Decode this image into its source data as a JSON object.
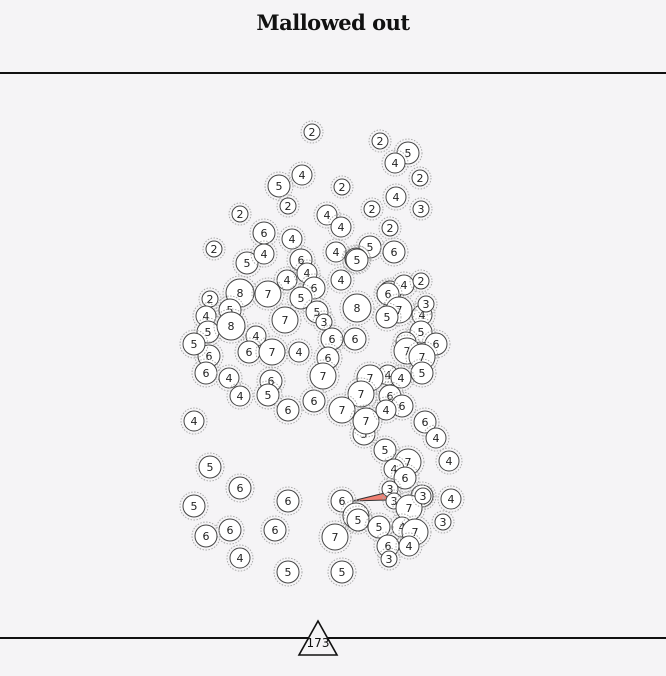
{
  "title": "Mallowed out",
  "remaining_count": "173",
  "colors": {
    "background": "#f5f4f6",
    "mallow_stroke": "#444444",
    "mallow_fill": "#ffffff",
    "glow": "#aaaaaa",
    "spike_fill": "#f07f72"
  },
  "mallows": [
    {
      "v": 2
    },
    {
      "v": 2
    },
    {
      "v": 5
    },
    {
      "v": 4
    },
    {
      "v": 2
    },
    {
      "v": 4
    },
    {
      "v": 5
    },
    {
      "v": 2
    },
    {
      "v": 2
    },
    {
      "v": 2
    },
    {
      "v": 4
    },
    {
      "v": 4
    },
    {
      "v": 2
    },
    {
      "v": 4
    },
    {
      "v": 3
    },
    {
      "v": 2
    },
    {
      "v": 2
    },
    {
      "v": 6
    },
    {
      "v": 4
    },
    {
      "v": 5
    },
    {
      "v": 4
    },
    {
      "v": 5
    },
    {
      "v": 4
    },
    {
      "v": 5
    },
    {
      "v": 6
    },
    {
      "v": 6
    },
    {
      "v": 5
    },
    {
      "v": 4
    },
    {
      "v": 4
    },
    {
      "v": 6
    },
    {
      "v": 4
    },
    {
      "v": 6
    },
    {
      "v": 4
    },
    {
      "v": 2
    },
    {
      "v": 8
    },
    {
      "v": 7
    },
    {
      "v": 2
    },
    {
      "v": 5
    },
    {
      "v": 5
    },
    {
      "v": 5
    },
    {
      "v": 6
    },
    {
      "v": 3
    },
    {
      "v": 4
    },
    {
      "v": 3
    },
    {
      "v": 8
    },
    {
      "v": 7
    },
    {
      "v": 4
    },
    {
      "v": 5
    },
    {
      "v": 7
    },
    {
      "v": 4
    },
    {
      "v": 8
    },
    {
      "v": 5
    },
    {
      "v": 5
    },
    {
      "v": 4
    },
    {
      "v": 6
    },
    {
      "v": 7
    },
    {
      "v": 6
    },
    {
      "v": 6
    },
    {
      "v": 6
    },
    {
      "v": 6
    },
    {
      "v": 7
    },
    {
      "v": 4
    },
    {
      "v": 5
    },
    {
      "v": 7
    },
    {
      "v": 6
    },
    {
      "v": 5
    },
    {
      "v": 6
    },
    {
      "v": 4
    },
    {
      "v": 6
    },
    {
      "v": 4
    },
    {
      "v": 4
    },
    {
      "v": 5
    },
    {
      "v": 6
    },
    {
      "v": 6
    },
    {
      "v": 7
    },
    {
      "v": 7
    },
    {
      "v": 6
    },
    {
      "v": 4
    },
    {
      "v": 6
    },
    {
      "v": 4
    },
    {
      "v": 7
    },
    {
      "v": 7
    },
    {
      "v": 5
    },
    {
      "v": 6
    },
    {
      "v": 4
    },
    {
      "v": 4
    },
    {
      "v": 5
    },
    {
      "v": 7
    },
    {
      "v": 4
    },
    {
      "v": 5
    },
    {
      "v": 6
    },
    {
      "v": 6
    },
    {
      "v": 6
    },
    {
      "v": 3
    },
    {
      "v": 4
    },
    {
      "v": 6
    },
    {
      "v": 3
    },
    {
      "v": 7
    },
    {
      "v": 3
    },
    {
      "v": 6
    },
    {
      "v": 5
    },
    {
      "v": 7
    },
    {
      "v": 5
    },
    {
      "v": 6
    },
    {
      "v": 4
    },
    {
      "v": 7
    },
    {
      "v": 6
    },
    {
      "v": 5
    },
    {
      "v": 6
    },
    {
      "v": 7
    },
    {
      "v": 6
    },
    {
      "v": 4
    },
    {
      "v": 3
    },
    {
      "v": 4
    },
    {
      "v": 5
    },
    {
      "v": 5
    },
    {
      "v": 7
    },
    {
      "v": 4
    },
    {
      "v": 3
    }
  ]
}
